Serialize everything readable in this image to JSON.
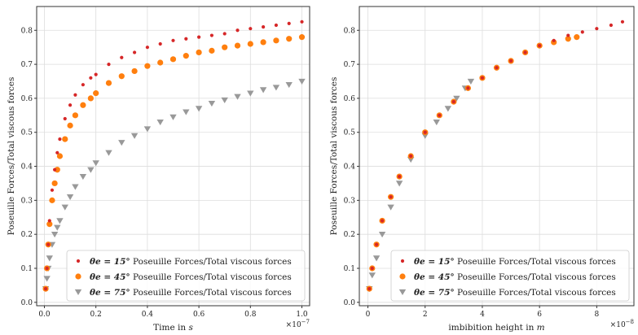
{
  "colors": {
    "s15": "#d62728",
    "s45": "#ff7f0e",
    "s75": "#999999",
    "grid": "#dddddd",
    "axis": "#333333"
  },
  "chart_data": [
    {
      "type": "scatter",
      "xlabel": "Time in s",
      "ylabel": "Poseuille Forces/Total viscous forces",
      "x_multiplier_label": "×10^-7",
      "xlim": [
        -0.03,
        1.03
      ],
      "ylim": [
        -0.01,
        0.87
      ],
      "xticks": [
        0.0,
        0.2,
        0.4,
        0.6,
        0.8,
        1.0
      ],
      "xtick_labels": [
        "0.0",
        "0.2",
        "0.4",
        "0.6",
        "0.8",
        "1.0"
      ],
      "yticks": [
        0.0,
        0.1,
        0.2,
        0.3,
        0.4,
        0.5,
        0.6,
        0.7,
        0.8
      ],
      "ytick_labels": [
        "0.0",
        "0.1",
        "0.2",
        "0.3",
        "0.4",
        "0.5",
        "0.6",
        "0.7",
        "0.8"
      ],
      "grid": true,
      "legend_position": "bottom-right",
      "series": [
        {
          "name": "θe = 15° Poseuille Forces/Total viscous forces",
          "legend_math": "θe = 15°",
          "legend_text": "Poseuille Forces/Total viscous forces",
          "marker": "circle-small",
          "color_key": "s15",
          "x": [
            0.005,
            0.01,
            0.015,
            0.02,
            0.03,
            0.04,
            0.05,
            0.06,
            0.08,
            0.1,
            0.12,
            0.15,
            0.18,
            0.2,
            0.25,
            0.3,
            0.35,
            0.4,
            0.45,
            0.5,
            0.55,
            0.6,
            0.65,
            0.7,
            0.75,
            0.8,
            0.85,
            0.9,
            0.95,
            1.0
          ],
          "y": [
            0.04,
            0.1,
            0.17,
            0.24,
            0.33,
            0.39,
            0.44,
            0.48,
            0.54,
            0.58,
            0.61,
            0.64,
            0.66,
            0.67,
            0.7,
            0.72,
            0.735,
            0.75,
            0.76,
            0.77,
            0.775,
            0.78,
            0.785,
            0.79,
            0.8,
            0.805,
            0.81,
            0.815,
            0.82,
            0.825
          ]
        },
        {
          "name": "θe = 45° Poseuille Forces/Total viscous forces",
          "legend_math": "θe = 45°",
          "legend_text": "Poseuille Forces/Total viscous forces",
          "marker": "circle",
          "color_key": "s45",
          "x": [
            0.005,
            0.01,
            0.015,
            0.02,
            0.03,
            0.04,
            0.05,
            0.06,
            0.08,
            0.1,
            0.12,
            0.15,
            0.18,
            0.2,
            0.25,
            0.3,
            0.35,
            0.4,
            0.45,
            0.5,
            0.55,
            0.6,
            0.65,
            0.7,
            0.75,
            0.8,
            0.85,
            0.9,
            0.95,
            1.0
          ],
          "y": [
            0.04,
            0.1,
            0.17,
            0.23,
            0.3,
            0.35,
            0.39,
            0.43,
            0.48,
            0.52,
            0.55,
            0.58,
            0.6,
            0.615,
            0.645,
            0.665,
            0.68,
            0.695,
            0.705,
            0.715,
            0.725,
            0.735,
            0.74,
            0.75,
            0.755,
            0.76,
            0.765,
            0.77,
            0.775,
            0.78
          ]
        },
        {
          "name": "θe = 75° Poseuille Forces/Total viscous forces",
          "legend_math": "θe = 75°",
          "legend_text": "Poseuille Forces/Total viscous forces",
          "marker": "triangle-down",
          "color_key": "s75",
          "x": [
            0.005,
            0.01,
            0.015,
            0.02,
            0.03,
            0.04,
            0.05,
            0.06,
            0.08,
            0.1,
            0.12,
            0.15,
            0.18,
            0.2,
            0.25,
            0.3,
            0.35,
            0.4,
            0.45,
            0.5,
            0.55,
            0.6,
            0.65,
            0.7,
            0.75,
            0.8,
            0.85,
            0.9,
            0.95,
            1.0
          ],
          "y": [
            0.04,
            0.07,
            0.1,
            0.13,
            0.17,
            0.2,
            0.22,
            0.24,
            0.28,
            0.31,
            0.34,
            0.37,
            0.39,
            0.41,
            0.44,
            0.47,
            0.49,
            0.51,
            0.53,
            0.545,
            0.56,
            0.57,
            0.585,
            0.595,
            0.605,
            0.615,
            0.625,
            0.632,
            0.64,
            0.65
          ]
        }
      ]
    },
    {
      "type": "scatter",
      "xlabel": "imbibition height in m",
      "ylabel": "Poseuille Forces/Total viscous forces",
      "x_multiplier_label": "×10^-8",
      "xlim": [
        -0.3,
        9.3
      ],
      "ylim": [
        -0.01,
        0.87
      ],
      "xticks": [
        0,
        2,
        4,
        6,
        8
      ],
      "xtick_labels": [
        "0",
        "2",
        "4",
        "6",
        "8"
      ],
      "yticks": [
        0.0,
        0.1,
        0.2,
        0.3,
        0.4,
        0.5,
        0.6,
        0.7,
        0.8
      ],
      "ytick_labels": [
        "0.0",
        "0.1",
        "0.2",
        "0.3",
        "0.4",
        "0.5",
        "0.6",
        "0.7",
        "0.8"
      ],
      "grid": true,
      "legend_position": "bottom-right",
      "series": [
        {
          "name": "θe = 15° Poseuille Forces/Total viscous forces",
          "legend_math": "θe = 15°",
          "legend_text": "Poseuille Forces/Total viscous forces",
          "marker": "circle-small",
          "color_key": "s15",
          "x": [
            0.05,
            0.15,
            0.3,
            0.5,
            0.8,
            1.1,
            1.5,
            2.0,
            2.5,
            3.0,
            3.5,
            4.0,
            4.5,
            5.0,
            5.5,
            6.0,
            6.5,
            7.0,
            7.5,
            8.0,
            8.5,
            8.9
          ],
          "y": [
            0.04,
            0.1,
            0.17,
            0.24,
            0.31,
            0.37,
            0.43,
            0.5,
            0.55,
            0.59,
            0.63,
            0.66,
            0.69,
            0.71,
            0.735,
            0.755,
            0.77,
            0.785,
            0.795,
            0.805,
            0.815,
            0.825
          ]
        },
        {
          "name": "θe = 45° Poseuille Forces/Total viscous forces",
          "legend_math": "θe = 45°",
          "legend_text": "Poseuille Forces/Total viscous forces",
          "marker": "circle",
          "color_key": "s45",
          "x": [
            0.05,
            0.15,
            0.3,
            0.5,
            0.8,
            1.1,
            1.5,
            2.0,
            2.5,
            3.0,
            3.5,
            4.0,
            4.5,
            5.0,
            5.5,
            6.0,
            6.5,
            7.0,
            7.3
          ],
          "y": [
            0.04,
            0.1,
            0.17,
            0.24,
            0.31,
            0.37,
            0.43,
            0.5,
            0.55,
            0.59,
            0.63,
            0.66,
            0.69,
            0.71,
            0.735,
            0.755,
            0.765,
            0.775,
            0.78
          ]
        },
        {
          "name": "θe = 75° Poseuille Forces/Total viscous forces",
          "legend_math": "θe = 75°",
          "legend_text": "Poseuille Forces/Total viscous forces",
          "marker": "triangle-down",
          "color_key": "s75",
          "x": [
            0.05,
            0.15,
            0.3,
            0.5,
            0.8,
            1.1,
            1.5,
            2.0,
            2.4,
            2.8,
            3.1,
            3.4,
            3.6
          ],
          "y": [
            0.04,
            0.08,
            0.13,
            0.2,
            0.28,
            0.35,
            0.42,
            0.49,
            0.53,
            0.57,
            0.6,
            0.63,
            0.65
          ]
        }
      ]
    }
  ]
}
